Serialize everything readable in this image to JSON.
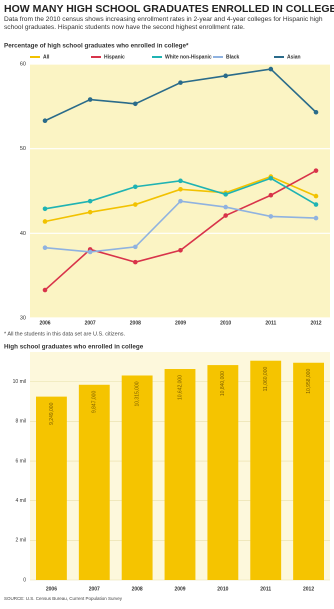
{
  "header": {
    "title": "HOW MANY HIGH SCHOOL GRADUATES ENROLLED IN COLLEGE?",
    "subtitle": "Data from the 2010 census shows increasing enrollment rates in 2-year and 4-year colleges for Hispanic high school graduates. Hispanic students now have the second highest enrollment rate.",
    "footnote": "* All the students in this data set are U.S. citizens.",
    "source": "SOURCE: U.S. Census Bureau, Current Population Survey"
  },
  "chart_data": [
    {
      "type": "line",
      "title": "Percentage of high school graduates who enrolled in college*",
      "categories": [
        "2006",
        "2007",
        "2008",
        "2009",
        "2010",
        "2011",
        "2012"
      ],
      "series": [
        {
          "name": "All",
          "color": "#f2c200",
          "values": [
            41.4,
            42.5,
            43.4,
            45.2,
            44.8,
            46.7,
            44.4
          ]
        },
        {
          "name": "Hispanic",
          "color": "#d8334a",
          "values": [
            33.3,
            38.1,
            36.6,
            38.0,
            42.1,
            44.5,
            47.4
          ]
        },
        {
          "name": "White non-Hispanic",
          "color": "#1fb3b3",
          "values": [
            42.9,
            43.8,
            45.5,
            46.2,
            44.6,
            46.5,
            43.4
          ]
        },
        {
          "name": "Black",
          "color": "#8fb2e0",
          "values": [
            38.3,
            37.8,
            38.4,
            43.8,
            43.1,
            42.0,
            41.8
          ]
        },
        {
          "name": "Asian",
          "color": "#2a6b8a",
          "values": [
            53.3,
            55.8,
            55.3,
            57.8,
            58.6,
            59.4,
            54.3
          ]
        }
      ],
      "ylim": [
        30,
        60
      ],
      "yticks": [
        30,
        40,
        50,
        60
      ],
      "grid": true
    },
    {
      "type": "bar",
      "title": "High school graduates who enrolled in college",
      "categories": [
        "2006",
        "2007",
        "2008",
        "2009",
        "2010",
        "2011",
        "2012"
      ],
      "values": [
        9249000,
        9847000,
        10315000,
        10642000,
        10840000,
        11060000,
        10958000
      ],
      "value_labels": [
        "9,249,000",
        "9,847,000",
        "10,315,000",
        "10,642,000",
        "10,840,000",
        "11,060,000",
        "10,958,000"
      ],
      "color": "#f5c400",
      "ylim": [
        0,
        11500000
      ],
      "yticks": [
        0,
        {
          "value": 2000000,
          "label": "2 mil"
        },
        {
          "value": 4000000,
          "label": "4 mil"
        },
        {
          "value": 6000000,
          "label": "6 mil"
        },
        {
          "value": 8000000,
          "label": "8 mil"
        },
        {
          "value": 10000000,
          "label": "10 mil"
        }
      ],
      "grid": true
    }
  ]
}
